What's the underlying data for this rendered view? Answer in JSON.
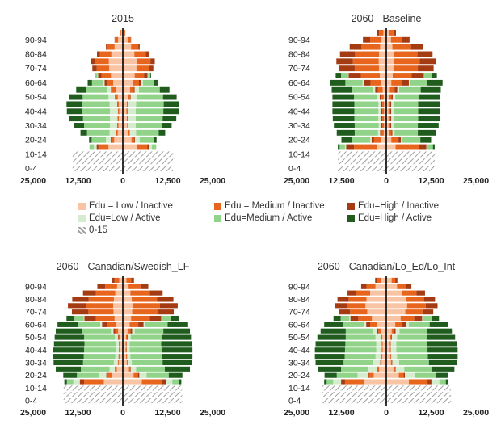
{
  "chart_data": [
    {
      "type": "population-pyramid",
      "title": "2015",
      "age_groups": [
        "0-4",
        "5-9",
        "10-14",
        "15-19",
        "20-24",
        "25-29",
        "30-34",
        "35-39",
        "40-44",
        "45-49",
        "50-54",
        "55-59",
        "60-64",
        "65-69",
        "70-74",
        "75-79",
        "80-84",
        "85-89",
        "90-94",
        "95-99"
      ],
      "age_tick_labels": [
        "90-94",
        "80-84",
        "70-74",
        "60-64",
        "50-54",
        "40-44",
        "30-34",
        "20-24",
        "10-14",
        "0-4"
      ],
      "x_tick_labels": [
        "25,000",
        "12,500",
        "0",
        "12,500",
        "25,000"
      ],
      "xlim": [
        -25000,
        25000
      ],
      "series": [
        {
          "key": "youth",
          "values": [
            14000,
            14000,
            14000,
            0,
            0,
            0,
            0,
            0,
            0,
            0,
            0,
            0,
            0,
            0,
            0,
            0,
            0,
            0,
            0,
            0
          ]
        },
        {
          "key": "low_inactive",
          "values": [
            0,
            0,
            0,
            4000,
            2400,
            1400,
            1200,
            1100,
            1000,
            1100,
            1400,
            2000,
            2700,
            3300,
            3800,
            3900,
            3200,
            2300,
            1300,
            500
          ]
        },
        {
          "key": "med_inactive",
          "values": [
            0,
            0,
            0,
            2800,
            800,
            400,
            300,
            300,
            300,
            400,
            600,
            1000,
            1800,
            2600,
            3500,
            3800,
            3200,
            2000,
            900,
            200
          ]
        },
        {
          "key": "high_inactive",
          "values": [
            0,
            0,
            0,
            500,
            200,
            100,
            100,
            100,
            100,
            100,
            200,
            300,
            600,
            1000,
            1200,
            1200,
            800,
            400,
            100,
            0
          ]
        },
        {
          "key": "low_active",
          "values": [
            0,
            0,
            0,
            800,
            1300,
            1800,
            2000,
            2100,
            2200,
            2100,
            1800,
            1200,
            500,
            150,
            0,
            0,
            0,
            0,
            0,
            0
          ]
        },
        {
          "key": "med_active",
          "values": [
            0,
            0,
            0,
            1200,
            4000,
            6300,
            7200,
            7500,
            7700,
            7700,
            7200,
            5800,
            3000,
            600,
            0,
            0,
            0,
            0,
            0,
            0
          ]
        },
        {
          "key": "high_active",
          "values": [
            0,
            0,
            0,
            0,
            700,
            1800,
            2800,
            3800,
            4300,
            4300,
            3800,
            2700,
            1200,
            200,
            0,
            0,
            0,
            0,
            0,
            0
          ]
        }
      ]
    },
    {
      "type": "population-pyramid",
      "title": "2060 - Baseline",
      "age_groups": [
        "0-4",
        "5-9",
        "10-14",
        "15-19",
        "20-24",
        "25-29",
        "30-34",
        "35-39",
        "40-44",
        "45-49",
        "50-54",
        "55-59",
        "60-64",
        "65-69",
        "70-74",
        "75-79",
        "80-84",
        "85-89",
        "90-94",
        "95-99"
      ],
      "age_tick_labels": [
        "90-94",
        "80-84",
        "70-74",
        "60-64",
        "50-54",
        "40-44",
        "30-34",
        "20-24",
        "10-14",
        "0-4"
      ],
      "x_tick_labels": [
        "25,000",
        "12,500",
        "0",
        "12,500",
        "25,000"
      ],
      "xlim": [
        -25000,
        25000
      ],
      "series": [
        {
          "key": "youth",
          "values": [
            13500,
            13500,
            13500,
            0,
            0,
            0,
            0,
            0,
            0,
            0,
            0,
            0,
            0,
            0,
            0,
            0,
            0,
            0,
            0,
            0
          ]
        },
        {
          "key": "low_inactive",
          "values": [
            0,
            0,
            0,
            2600,
            1400,
            700,
            600,
            600,
            600,
            600,
            700,
            1000,
            1400,
            1800,
            2000,
            2100,
            2000,
            1700,
            1300,
            800
          ]
        },
        {
          "key": "med_inactive",
          "values": [
            0,
            0,
            0,
            6400,
            2000,
            700,
            500,
            500,
            500,
            500,
            700,
            1300,
            3000,
            5300,
            6800,
            7200,
            6700,
            5200,
            3200,
            1200
          ]
        },
        {
          "key": "high_inactive",
          "values": [
            0,
            0,
            0,
            2200,
            700,
            300,
            300,
            300,
            300,
            300,
            400,
            800,
            1900,
            3400,
            4400,
            4600,
            4200,
            3300,
            2000,
            700
          ]
        },
        {
          "key": "low_active",
          "values": [
            0,
            0,
            0,
            300,
            400,
            600,
            700,
            800,
            800,
            800,
            700,
            500,
            300,
            100,
            0,
            0,
            0,
            0,
            0,
            0
          ]
        },
        {
          "key": "med_active",
          "values": [
            0,
            0,
            0,
            1500,
            5000,
            6500,
            6700,
            6700,
            6700,
            6700,
            6500,
            6000,
            4800,
            2000,
            0,
            0,
            0,
            0,
            0,
            0
          ]
        },
        {
          "key": "high_active",
          "values": [
            0,
            0,
            0,
            500,
            3000,
            5000,
            5800,
            6000,
            6100,
            6100,
            6000,
            5600,
            4300,
            1500,
            0,
            0,
            0,
            0,
            0,
            0
          ]
        }
      ]
    },
    {
      "type": "population-pyramid",
      "title": "2060 - Canadian/Swedish_LF",
      "age_groups": [
        "0-4",
        "5-9",
        "10-14",
        "15-19",
        "20-24",
        "25-29",
        "30-34",
        "35-39",
        "40-44",
        "45-49",
        "50-54",
        "55-59",
        "60-64",
        "65-69",
        "70-74",
        "75-79",
        "80-84",
        "85-89",
        "90-94",
        "95-99"
      ],
      "age_tick_labels": [
        "90-94",
        "80-84",
        "70-74",
        "60-64",
        "50-54",
        "40-44",
        "30-34",
        "20-24",
        "10-14",
        "0-4"
      ],
      "x_tick_labels": [
        "25,000",
        "12,500",
        "0",
        "12,500",
        "25,000"
      ],
      "xlim": [
        -25000,
        25000
      ],
      "series": [
        {
          "key": "youth",
          "values": [
            16500,
            16500,
            16500,
            0,
            0,
            0,
            0,
            0,
            0,
            0,
            0,
            0,
            0,
            0,
            0,
            0,
            0,
            0,
            0,
            0
          ]
        },
        {
          "key": "low_inactive",
          "values": [
            0,
            0,
            0,
            5300,
            3000,
            1700,
            1100,
            900,
            800,
            800,
            900,
            1300,
            1900,
            2300,
            2600,
            2700,
            2500,
            2100,
            1600,
            1000
          ]
        },
        {
          "key": "med_inactive",
          "values": [
            0,
            0,
            0,
            5500,
            1200,
            300,
            200,
            200,
            200,
            200,
            300,
            800,
            2400,
            5200,
            7000,
            7600,
            7000,
            5400,
            3300,
            1300
          ]
        },
        {
          "key": "high_inactive",
          "values": [
            0,
            0,
            0,
            1200,
            400,
            200,
            100,
            100,
            100,
            100,
            200,
            500,
            1500,
            3200,
            4600,
            5000,
            4600,
            3600,
            2200,
            800
          ]
        },
        {
          "key": "low_active",
          "values": [
            0,
            0,
            0,
            1800,
            2000,
            1500,
            1100,
            900,
            800,
            800,
            800,
            700,
            500,
            200,
            0,
            0,
            0,
            0,
            0,
            0
          ]
        },
        {
          "key": "med_active",
          "values": [
            0,
            0,
            0,
            1800,
            6200,
            8000,
            8600,
            8800,
            8900,
            8800,
            8600,
            8000,
            6200,
            2600,
            0,
            0,
            0,
            0,
            0,
            0
          ]
        },
        {
          "key": "high_active",
          "values": [
            0,
            0,
            0,
            700,
            3800,
            7000,
            8200,
            8500,
            8600,
            8500,
            8200,
            7400,
            5700,
            2200,
            0,
            0,
            0,
            0,
            0,
            0
          ]
        }
      ]
    },
    {
      "type": "population-pyramid",
      "title": "2060 - Canadian/Lo_Ed/Lo_Int",
      "age_groups": [
        "0-4",
        "5-9",
        "10-14",
        "15-19",
        "20-24",
        "25-29",
        "30-34",
        "35-39",
        "40-44",
        "45-49",
        "50-54",
        "55-59",
        "60-64",
        "65-69",
        "70-74",
        "75-79",
        "80-84",
        "85-89",
        "90-94",
        "95-99"
      ],
      "age_tick_labels": [
        "90-94",
        "80-84",
        "70-74",
        "60-64",
        "50-54",
        "40-44",
        "30-34",
        "20-24",
        "10-14",
        "0-4"
      ],
      "x_tick_labels": [
        "25,000",
        "12,500",
        "0",
        "12,500",
        "25,000"
      ],
      "xlim": [
        -25000,
        25000
      ],
      "series": [
        {
          "key": "youth",
          "values": [
            18000,
            18000,
            18000,
            0,
            0,
            0,
            0,
            0,
            0,
            0,
            0,
            0,
            0,
            0,
            0,
            0,
            0,
            0,
            0,
            0
          ]
        },
        {
          "key": "low_inactive",
          "values": [
            0,
            0,
            0,
            6300,
            3500,
            2000,
            1300,
            1100,
            1000,
            1000,
            1100,
            1500,
            2500,
            4000,
            5300,
            5800,
            5500,
            4500,
            3000,
            1500
          ]
        },
        {
          "key": "med_inactive",
          "values": [
            0,
            0,
            0,
            5200,
            1300,
            400,
            300,
            200,
            200,
            200,
            300,
            700,
            2000,
            3800,
            4800,
            5200,
            5000,
            3900,
            2500,
            1000
          ]
        },
        {
          "key": "high_inactive",
          "values": [
            0,
            0,
            0,
            1100,
            400,
            200,
            100,
            100,
            100,
            100,
            200,
            400,
            1100,
            2200,
            3000,
            3300,
            3100,
            2400,
            1500,
            600
          ]
        },
        {
          "key": "low_active",
          "values": [
            0,
            0,
            0,
            2200,
            2800,
            2400,
            1900,
            1600,
            1500,
            1500,
            1400,
            1100,
            700,
            300,
            0,
            0,
            0,
            0,
            0,
            0
          ]
        },
        {
          "key": "med_active",
          "values": [
            0,
            0,
            0,
            1800,
            5800,
            7600,
            8300,
            8600,
            8700,
            8600,
            8300,
            7600,
            5800,
            2400,
            0,
            0,
            0,
            0,
            0,
            0
          ]
        },
        {
          "key": "high_active",
          "values": [
            0,
            0,
            0,
            700,
            3400,
            6400,
            7800,
            8300,
            8400,
            8300,
            7900,
            7000,
            5200,
            2000,
            0,
            0,
            0,
            0,
            0,
            0
          ]
        }
      ]
    }
  ],
  "legend": {
    "items": [
      {
        "key": "low_inactive",
        "label": "Edu = Low / Inactive"
      },
      {
        "key": "med_inactive",
        "label": "Edu = Medium / Inactive"
      },
      {
        "key": "high_inactive",
        "label": "Edu=High / Inactive"
      },
      {
        "key": "low_active",
        "label": "Edu=Low / Active"
      },
      {
        "key": "med_active",
        "label": "Edu=Medium / Active"
      },
      {
        "key": "high_active",
        "label": "Edu=High / Active"
      },
      {
        "key": "youth",
        "label": "0-15"
      }
    ]
  },
  "colors": {
    "low_inactive": "#f9c4a4",
    "med_inactive": "#e8651d",
    "high_inactive": "#a53b13",
    "low_active": "#d6eccf",
    "med_active": "#92d38a",
    "high_active": "#1f5c1e",
    "youth": "#9f9f9f",
    "axis": "#000000",
    "grid": "#e4e4e4",
    "text": "#333333"
  }
}
